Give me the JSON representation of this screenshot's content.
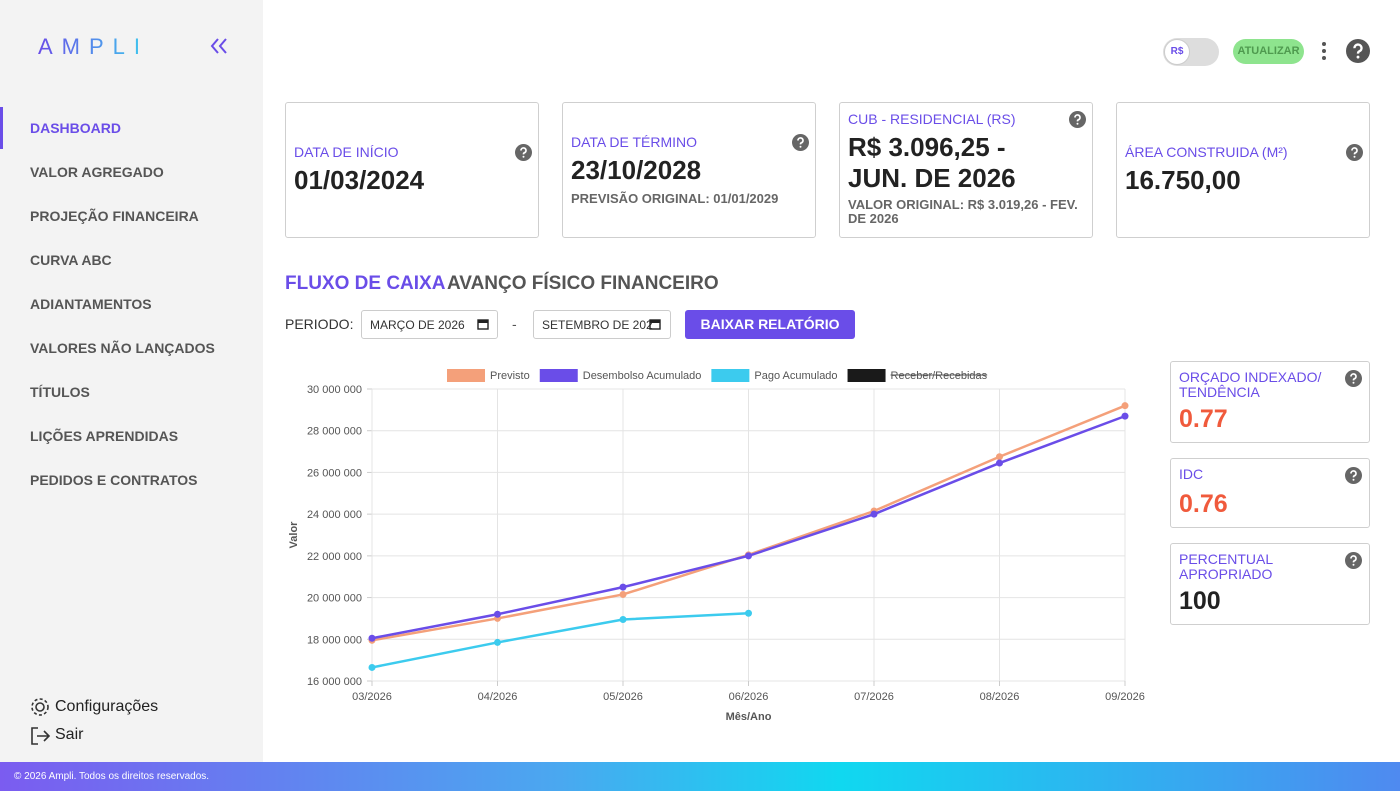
{
  "logo": "AMPLI",
  "sidebar": {
    "nav": [
      "DASHBOARD",
      "VALOR AGREGADO",
      "PROJEÇÃO FINANCEIRA",
      "CURVA ABC",
      "ADIANTAMENTOS",
      "VALORES NÃO LANÇADOS",
      "TÍTULOS",
      "LIÇÕES APRENDIDAS",
      "PEDIDOS E CONTRATOS"
    ],
    "settings": "Configurações",
    "logout": "Sair"
  },
  "header": {
    "currency": "R$",
    "refresh": "ATUALIZAR"
  },
  "cards": [
    {
      "label": "DATA DE INÍCIO",
      "value": "01/03/2024"
    },
    {
      "label": "DATA DE TÉRMINO",
      "value": "23/10/2028",
      "note": "PREVISÃO ORIGINAL: 01/01/2029"
    },
    {
      "label": "CUB - RESIDENCIAL (RS)",
      "value": "R$ 3.096,25 - JUN. DE 2026",
      "note": "VALOR ORIGINAL: R$ 3.019,26 - FEV. DE 2026"
    },
    {
      "label": "ÁREA CONSTRUIDA (M²)",
      "value": "16.750,00"
    }
  ],
  "tabs": [
    "FLUXO DE CAIXA",
    "AVANÇO FÍSICO FINANCEIRO"
  ],
  "period": {
    "label": "PERIODO:",
    "start": "MARÇO DE 2026",
    "separator": "-",
    "end": "SETEMBRO DE 202"
  },
  "download": "BAIXAR RELATÓRIO",
  "chart_data": {
    "type": "line",
    "xlabel": "Mês/Ano",
    "ylabel": "Valor",
    "categories": [
      "03/2026",
      "04/2026",
      "05/2026",
      "06/2026",
      "07/2026",
      "08/2026",
      "09/2026"
    ],
    "series": [
      {
        "name": "Previsto",
        "color": "#f4a07a",
        "values": [
          17950000,
          19000000,
          20150000,
          22050000,
          24150000,
          26750000,
          29200000
        ]
      },
      {
        "name": "Desembolso Acumulado",
        "color": "#6a4de8",
        "values": [
          18050000,
          19200000,
          20500000,
          22000000,
          24000000,
          26450000,
          28700000
        ]
      },
      {
        "name": "Pago Acumulado",
        "color": "#3ccbee",
        "values": [
          16650000,
          17850000,
          18950000,
          19250000,
          null,
          null,
          null
        ]
      },
      {
        "name": "Receber/Recebidas",
        "color": "#1a1a1a",
        "hidden": true,
        "values": [
          null,
          null,
          null,
          null,
          null,
          null,
          null
        ]
      }
    ],
    "ylim": [
      16000000,
      30000000
    ],
    "yticks": [
      {
        "value": 16000000,
        "label": "16 000 000"
      },
      {
        "value": 18000000,
        "label": "18 000 000"
      },
      {
        "value": 20000000,
        "label": "20 000 000"
      },
      {
        "value": 22000000,
        "label": "22 000 000"
      },
      {
        "value": 24000000,
        "label": "24 000 000"
      },
      {
        "value": 26000000,
        "label": "26 000 000"
      },
      {
        "value": 28000000,
        "label": "28 000 000"
      },
      {
        "value": 30000000,
        "label": "30 000 000"
      }
    ],
    "grid": true,
    "legend": "top"
  },
  "indicators": [
    {
      "label": "ORÇADO INDEXADO/ TENDÊNCIA",
      "value": 0.77,
      "color": "#f05a3c"
    },
    {
      "label": "IDC",
      "value": 0.76,
      "color": "#f05a3c"
    },
    {
      "label": "PERCENTUAL APROPRIADO",
      "value": 100,
      "color": "#222222"
    }
  ],
  "footer": "© 2026 Ampli. Todos os direitos reservados."
}
